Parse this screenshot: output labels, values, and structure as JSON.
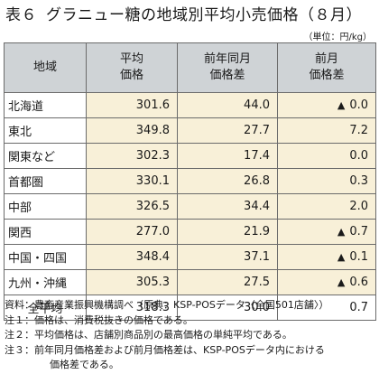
{
  "title": {
    "number": "表６",
    "text": "グラニュー糖の地域別平均小売価格（８月）"
  },
  "unit": "（単位：円/kg）",
  "headers": {
    "region": "地域",
    "price": [
      "平均",
      "価格"
    ],
    "yoy": [
      "前年同月",
      "価格差"
    ],
    "mom": [
      "前月",
      "価格差"
    ]
  },
  "rows": [
    {
      "region": "北海道",
      "price": "301.6",
      "yoy": "44.0",
      "mom": "0.0",
      "mom_down": "▲"
    },
    {
      "region": "東北",
      "price": "349.8",
      "yoy": "27.7",
      "mom": "7.2",
      "mom_down": ""
    },
    {
      "region": "関東など",
      "price": "302.3",
      "yoy": "17.4",
      "mom": "0.0",
      "mom_down": ""
    },
    {
      "region": "首都圏",
      "price": "330.1",
      "yoy": "26.8",
      "mom": "0.3",
      "mom_down": ""
    },
    {
      "region": "中部",
      "price": "326.5",
      "yoy": "34.4",
      "mom": "2.0",
      "mom_down": ""
    },
    {
      "region": "関西",
      "price": "277.0",
      "yoy": "21.9",
      "mom": "0.7",
      "mom_down": "▲"
    },
    {
      "region": "中国・四国",
      "price": "348.4",
      "yoy": "37.1",
      "mom": "0.1",
      "mom_down": "▲"
    },
    {
      "region": "九州・沖縄",
      "price": "305.3",
      "yoy": "27.5",
      "mom": "0.6",
      "mom_down": "▲"
    }
  ],
  "total": {
    "region": "全平均",
    "price": "318.3",
    "yoy": "30.0",
    "mom": "0.7"
  },
  "notes": [
    {
      "label": "資料：",
      "text": "農畜産業振興機構調べ（原典：KSP-POSデータ〈全国501店舗〉）"
    },
    {
      "label": "注１：",
      "text": "価格は、消費税抜きの価格である。"
    },
    {
      "label": "注２：",
      "text": "平均価格は、店舗別商品別の最高価格の単純平均である。"
    },
    {
      "label": "注３：",
      "text": "前年同月価格差および前月価格差は、KSP-POSデータ内における",
      "cont": "価格差である。"
    }
  ]
}
